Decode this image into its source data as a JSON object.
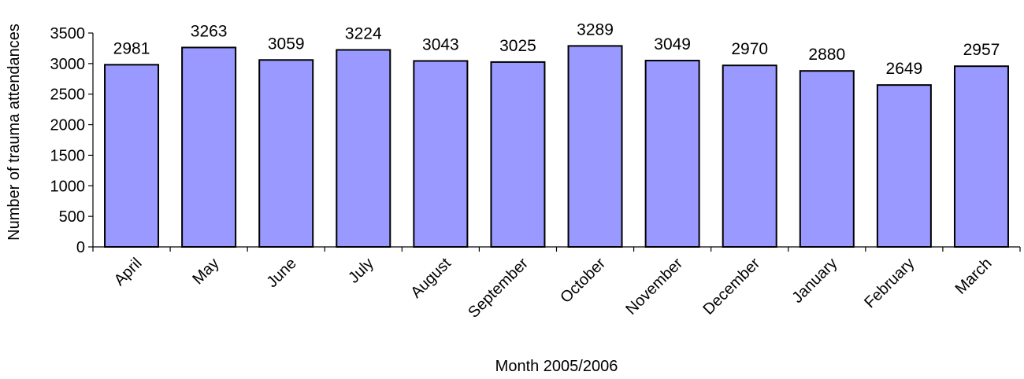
{
  "chart_data": {
    "type": "bar",
    "categories": [
      "April",
      "May",
      "June",
      "July",
      "August",
      "September",
      "October",
      "November",
      "December",
      "January",
      "February",
      "March"
    ],
    "values": [
      2981,
      3263,
      3059,
      3224,
      3043,
      3025,
      3289,
      3049,
      2970,
      2880,
      2649,
      2957
    ],
    "data_labels": [
      "2981",
      "3263",
      "3059",
      "3224",
      "3043",
      "3025",
      "3289",
      "3049",
      "2970",
      "2880",
      "2649",
      "2957"
    ],
    "title": "",
    "xlabel": "Month 2005/2006",
    "ylabel": "Number of trauma attendances",
    "ylim": [
      0,
      3500
    ],
    "yticks": [
      0,
      500,
      1000,
      1500,
      2000,
      2500,
      3000,
      3500
    ],
    "ytick_labels": [
      "0",
      "500",
      "1000",
      "1500",
      "2000",
      "2500",
      "3000",
      "3500"
    ],
    "grid": false,
    "legend": "none",
    "colors": {
      "bar_fill": "#9999FF",
      "bar_stroke": "#000000",
      "axis": "#000000",
      "text": "#000000"
    }
  }
}
